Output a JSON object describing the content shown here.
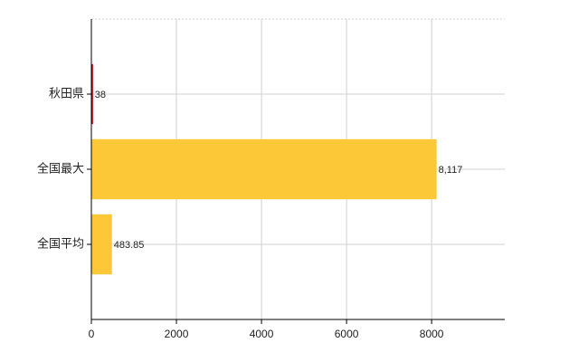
{
  "chart_data": {
    "type": "hbar",
    "categories": [
      "秋田県",
      "全国最大",
      "全国平均"
    ],
    "values": [
      38,
      8117,
      483.85
    ],
    "value_labels": [
      "38",
      "8,117",
      "483.85"
    ],
    "colors": [
      "#c00000",
      "#fcc838",
      "#fcc838"
    ],
    "xlim": [
      0,
      9720
    ],
    "xticks": [
      0,
      2000,
      4000,
      6000,
      8000
    ],
    "grid": true
  }
}
